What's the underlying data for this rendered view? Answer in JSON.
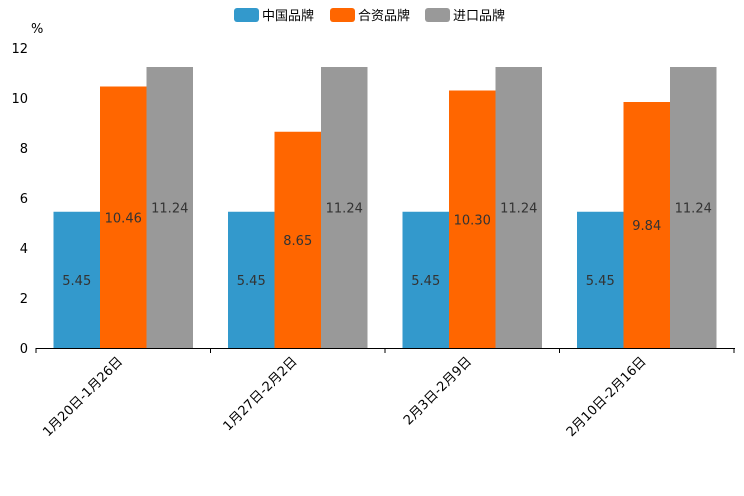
{
  "chart_data": {
    "type": "bar",
    "ylabel": "%",
    "ylim": [
      0,
      12
    ],
    "yticks": [
      0,
      2,
      4,
      6,
      8,
      10,
      12
    ],
    "categories": [
      "1月20日-1月26日",
      "1月27日-2月2日",
      "2月3日-2月9日",
      "2月10日-2月16日"
    ],
    "series": [
      {
        "name": "中国品牌",
        "color": "#3399cc",
        "values": [
          5.45,
          5.45,
          5.45,
          5.45
        ],
        "labels": [
          "5.45",
          "5.45",
          "5.45",
          "5.45"
        ]
      },
      {
        "name": "合资品牌",
        "color": "#ff6600",
        "values": [
          10.46,
          8.65,
          10.3,
          9.84
        ],
        "labels": [
          "10.46",
          "8.65",
          "10.30",
          "9.84"
        ]
      },
      {
        "name": "进口品牌",
        "color": "#999999",
        "values": [
          11.24,
          11.24,
          11.24,
          11.24
        ],
        "labels": [
          "11.24",
          "11.24",
          "11.24",
          "11.24"
        ]
      }
    ],
    "legend_position": "top-center",
    "grid": false
  }
}
